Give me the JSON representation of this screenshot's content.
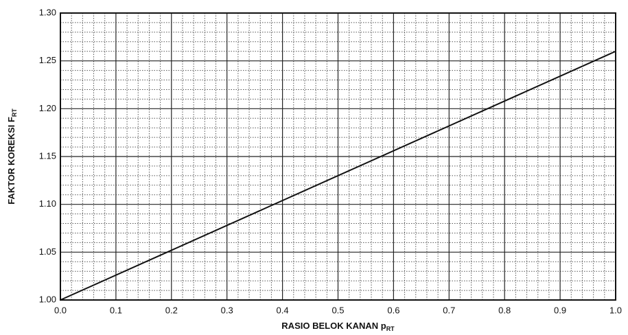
{
  "chart_data": {
    "type": "line",
    "x_label": "RASIO BELOK KANAN p",
    "x_label_sub": "RT",
    "y_label": "FAKTOR KOREKSI F",
    "y_label_sub": "RT",
    "x": [
      0,
      1.0
    ],
    "series": [
      {
        "color": "#111111",
        "values": [
          1.0,
          1.26
        ]
      }
    ],
    "xlim": [
      0,
      1.0
    ],
    "xticks": [
      {
        "value": 0,
        "label": "0.0"
      },
      0.1,
      0.2,
      0.3,
      0.4,
      0.5,
      0.6,
      0.7,
      0.8,
      0.9,
      {
        "value": 1.0,
        "label": "1.0"
      }
    ],
    "ylim": [
      1.0,
      1.3
    ],
    "yticks": [
      {
        "value": 1.0,
        "label": "1.00"
      },
      1.05,
      {
        "value": 1.1,
        "label": "1.10"
      },
      1.15,
      {
        "value": 1.2,
        "label": "1.20"
      },
      1.25,
      {
        "value": 1.3,
        "label": "1.30"
      }
    ],
    "grid": true
  }
}
